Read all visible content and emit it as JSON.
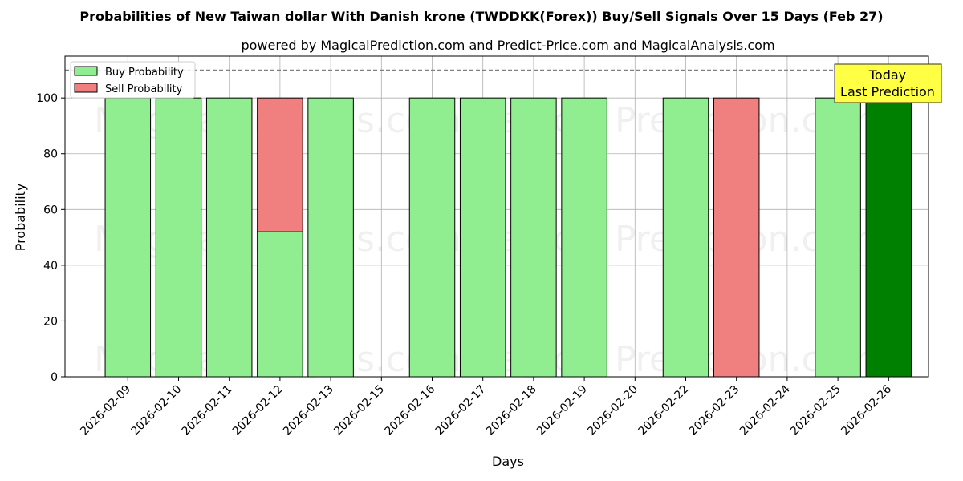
{
  "chart_data": {
    "type": "bar",
    "title": "Probabilities of New Taiwan dollar With Danish krone (TWDDKK(Forex)) Buy/Sell Signals Over 15 Days (Feb 27)",
    "subtitle": "powered by MagicalPrediction.com and Predict-Price.com and MagicalAnalysis.com",
    "xlabel": "Days",
    "ylabel": "Probability",
    "ylim": [
      0,
      115
    ],
    "yticks": [
      0,
      20,
      40,
      60,
      80,
      100
    ],
    "grid": true,
    "legend_position": "top-left",
    "reference_line": 110,
    "categories": [
      "2026-02-09",
      "2026-02-10",
      "2026-02-11",
      "2026-02-12",
      "2026-02-13",
      "2026-02-15",
      "2026-02-16",
      "2026-02-17",
      "2026-02-18",
      "2026-02-19",
      "2026-02-20",
      "2026-02-22",
      "2026-02-23",
      "2026-02-24",
      "2026-02-25",
      "2026-02-26"
    ],
    "series": [
      {
        "name": "Buy Probability",
        "color": "#90ee90",
        "values": [
          100,
          100,
          100,
          52,
          100,
          0,
          100,
          100,
          100,
          100,
          0,
          100,
          0,
          0,
          100,
          100
        ]
      },
      {
        "name": "Sell Probability",
        "color": "#f08080",
        "values": [
          0,
          0,
          0,
          48,
          0,
          0,
          0,
          0,
          0,
          0,
          0,
          0,
          100,
          0,
          0,
          0
        ]
      }
    ],
    "highlight": {
      "category": "2026-02-26",
      "color": "#008000"
    },
    "annotation": {
      "line1": "Today",
      "line2": "Last Prediction",
      "color": "#ffff44"
    },
    "watermarks": [
      "MagicalAnalysis.com",
      "Magical Prediction.com"
    ]
  }
}
